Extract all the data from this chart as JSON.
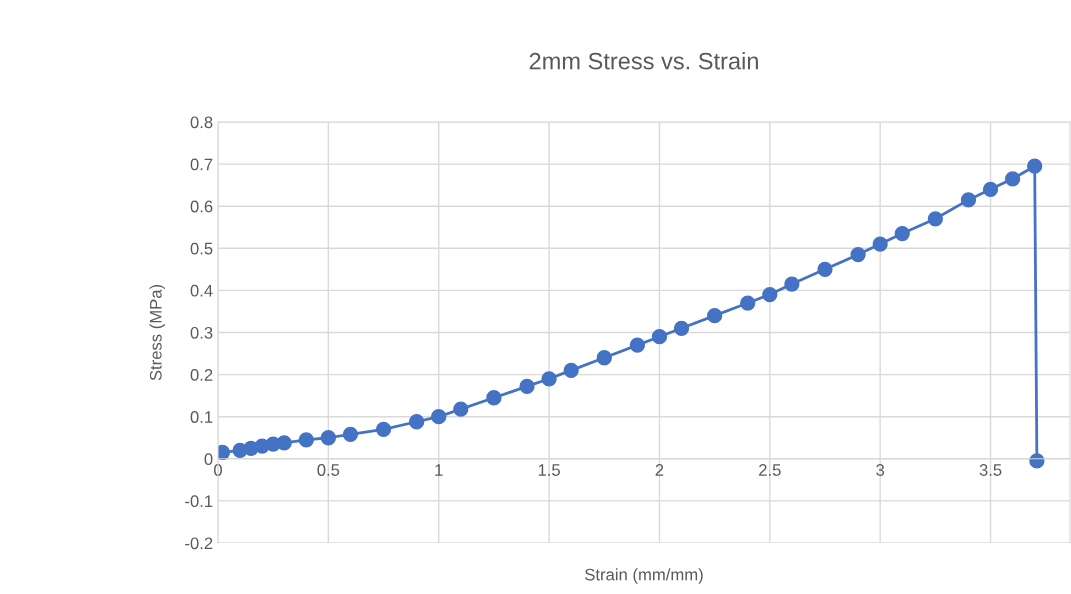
{
  "chart_data": {
    "type": "line",
    "title": "2mm Stress vs. Strain",
    "xlabel": "Strain (mm/mm)",
    "ylabel": "Stress (MPa)",
    "x": [
      0.02,
      0.1,
      0.15,
      0.2,
      0.25,
      0.3,
      0.4,
      0.5,
      0.6,
      0.75,
      0.9,
      1.0,
      1.1,
      1.25,
      1.4,
      1.5,
      1.6,
      1.75,
      1.9,
      2.0,
      2.1,
      2.25,
      2.4,
      2.5,
      2.6,
      2.75,
      2.9,
      3.0,
      3.1,
      3.25,
      3.4,
      3.5,
      3.6,
      3.7,
      3.71
    ],
    "series": [
      {
        "color": "#4472c4",
        "values": [
          0.015,
          0.02,
          0.025,
          0.03,
          0.035,
          0.038,
          0.045,
          0.05,
          0.058,
          0.07,
          0.088,
          0.1,
          0.118,
          0.145,
          0.172,
          0.19,
          0.21,
          0.24,
          0.27,
          0.29,
          0.31,
          0.34,
          0.37,
          0.39,
          0.415,
          0.45,
          0.485,
          0.51,
          0.535,
          0.57,
          0.615,
          0.64,
          0.665,
          0.695,
          -0.005
        ]
      }
    ],
    "xlim": [
      0,
      3.86
    ],
    "xticks": [
      0,
      0.5,
      1,
      1.5,
      2,
      2.5,
      3,
      3.5
    ],
    "ylim": [
      -0.2,
      0.8
    ],
    "yticks": [
      -0.2,
      -0.1,
      0,
      0.1,
      0.2,
      0.3,
      0.4,
      0.5,
      0.6,
      0.7,
      0.8
    ],
    "grid": true,
    "marker": "circle",
    "line_style": "solid",
    "legend": false
  }
}
